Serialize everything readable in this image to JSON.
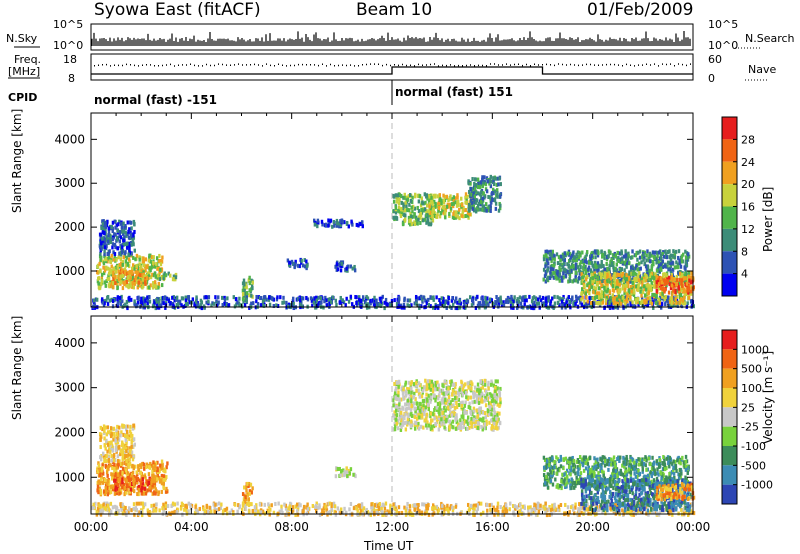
{
  "header": {
    "title": "Syowa East (fitACF)",
    "beam": "Beam 10",
    "date": "01/Feb/2009"
  },
  "top_panels": {
    "nsky_label": "N.Sky",
    "nsky_ticks": [
      "10^5",
      "10^0"
    ],
    "nsearch_label": "N.Search",
    "nsearch_ticks": [
      "10^5",
      "10^0"
    ],
    "freq_label_1": "Freq.",
    "freq_label_2": "[MHz]",
    "freq_ticks": [
      "18",
      "8"
    ],
    "nave_label": "Nave",
    "nave_ticks": [
      "60",
      "0"
    ],
    "cpid_label": "CPID",
    "cpid_segments": [
      "normal (fast) -151",
      "normal (fast) 151"
    ]
  },
  "chart_data": [
    {
      "type": "heatmap",
      "name": "power",
      "ylabel": "Slant Range [km]",
      "xlabel": "Time UT",
      "ylim": [
        180,
        4600
      ],
      "xlim_hours": [
        0,
        24
      ],
      "x_ticks": [
        "00:00",
        "04:00",
        "08:00",
        "12:00",
        "16:00",
        "20:00",
        "00:00"
      ],
      "y_ticks": [
        1000,
        2000,
        3000,
        4000
      ],
      "colorbar": {
        "label": "Power [dB]",
        "ticks": [
          "4",
          "8",
          "12",
          "16",
          "20",
          "24",
          "28"
        ],
        "colors": [
          "#0000f0",
          "#2d52b4",
          "#3c8c78",
          "#50b44a",
          "#c8d23c",
          "#f0a020",
          "#f06414",
          "#e61e1e"
        ]
      },
      "regions": [
        {
          "t0": 0.2,
          "t1": 2.8,
          "r0": 650,
          "r1": 1400,
          "level": 4
        },
        {
          "t0": 0.8,
          "t1": 2.2,
          "r0": 750,
          "r1": 1050,
          "level": 5
        },
        {
          "t0": 2.5,
          "t1": 3.4,
          "r0": 850,
          "r1": 1000,
          "level": 3
        },
        {
          "t0": 0.3,
          "t1": 1.7,
          "r0": 1400,
          "r1": 2200,
          "level": 1
        },
        {
          "t0": 6.0,
          "t1": 6.4,
          "r0": 400,
          "r1": 900,
          "level": 3
        },
        {
          "t0": 7.8,
          "t1": 8.6,
          "r0": 1100,
          "r1": 1300,
          "level": 1
        },
        {
          "t0": 9.7,
          "t1": 10.5,
          "r0": 1050,
          "r1": 1250,
          "level": 1
        },
        {
          "t0": 8.8,
          "t1": 10.8,
          "r0": 2050,
          "r1": 2200,
          "level": 1
        },
        {
          "t0": 12.0,
          "t1": 13.6,
          "r0": 2100,
          "r1": 2800,
          "level": 3
        },
        {
          "t0": 13.4,
          "t1": 15.2,
          "r0": 2250,
          "r1": 2800,
          "level": 4
        },
        {
          "t0": 15.0,
          "t1": 16.3,
          "r0": 2400,
          "r1": 3200,
          "level": 2
        },
        {
          "t0": 18.0,
          "t1": 23.8,
          "r0": 800,
          "r1": 1500,
          "level": 2
        },
        {
          "t0": 19.5,
          "t1": 23.9,
          "r0": 300,
          "r1": 1000,
          "level": 4
        },
        {
          "t0": 22.5,
          "t1": 24.0,
          "r0": 550,
          "r1": 900,
          "level": 6
        }
      ]
    },
    {
      "type": "heatmap",
      "name": "velocity",
      "ylabel": "Slant Range [km]",
      "xlabel": "Time UT",
      "ylim": [
        180,
        4600
      ],
      "xlim_hours": [
        0,
        24
      ],
      "x_ticks": [
        "00:00",
        "04:00",
        "08:00",
        "12:00",
        "16:00",
        "20:00",
        "00:00"
      ],
      "y_ticks": [
        1000,
        2000,
        3000,
        4000
      ],
      "colorbar": {
        "label": "Velocity [m s⁻¹]",
        "ticks": [
          "1000",
          "500",
          "100",
          "25",
          "-25",
          "-100",
          "-500",
          "-1000"
        ],
        "colors": [
          "#2d46b4",
          "#3c8cb4",
          "#3c8c5a",
          "#78d23c",
          "#c8c8c8",
          "#f0d23c",
          "#f0a020",
          "#f06414",
          "#e61e1e"
        ]
      },
      "regions": [
        {
          "t0": 0.2,
          "t1": 3.0,
          "r0": 650,
          "r1": 1400,
          "level": 6
        },
        {
          "t0": 0.8,
          "t1": 2.5,
          "r0": 750,
          "r1": 1050,
          "level": 7
        },
        {
          "t0": 0.3,
          "t1": 1.7,
          "r0": 1400,
          "r1": 2200,
          "level": 5
        },
        {
          "t0": 6.0,
          "t1": 6.4,
          "r0": 400,
          "r1": 900,
          "level": 6
        },
        {
          "t0": 9.7,
          "t1": 10.5,
          "r0": 1050,
          "r1": 1250,
          "level": 4
        },
        {
          "t0": 12.0,
          "t1": 16.3,
          "r0": 2100,
          "r1": 3200,
          "level": 4
        },
        {
          "t0": 18.0,
          "t1": 23.8,
          "r0": 800,
          "r1": 1500,
          "level": 2
        },
        {
          "t0": 19.5,
          "t1": 23.9,
          "r0": 300,
          "r1": 1000,
          "level": 1
        },
        {
          "t0": 22.5,
          "t1": 24.0,
          "r0": 550,
          "r1": 900,
          "level": 6
        }
      ]
    }
  ]
}
